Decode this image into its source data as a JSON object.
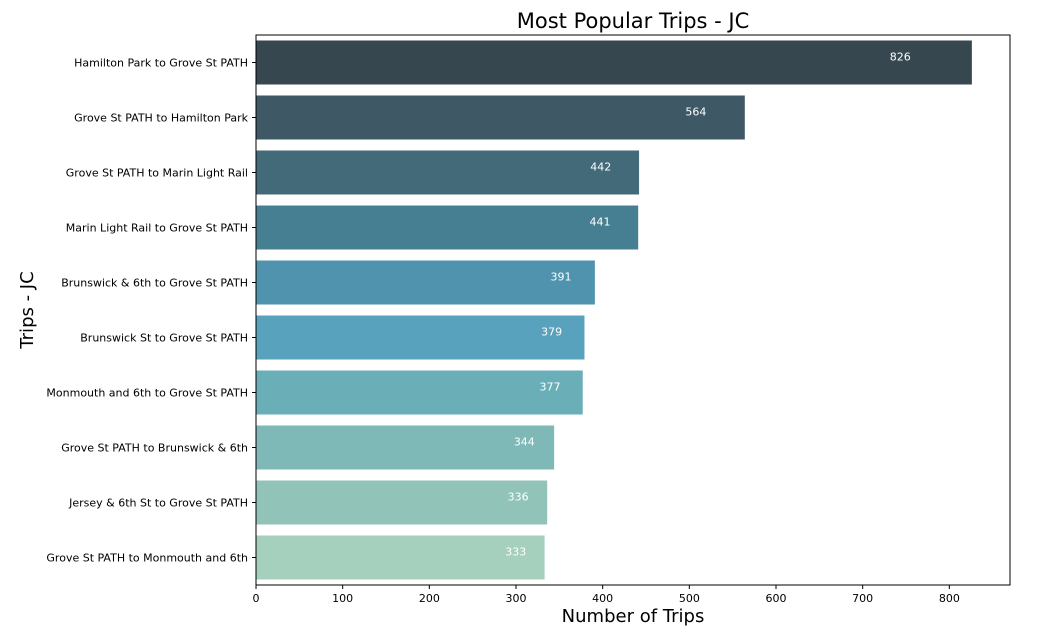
{
  "chart_data": {
    "type": "bar",
    "orientation": "horizontal",
    "title": "Most Popular Trips - JC",
    "xlabel": "Number of Trips",
    "ylabel": "Trips - JC",
    "xlim": [
      0,
      870
    ],
    "xticks": [
      0,
      100,
      200,
      300,
      400,
      500,
      600,
      700,
      800
    ],
    "grid": false,
    "categories": [
      "Hamilton Park to Grove St PATH",
      "Grove St PATH to Hamilton Park",
      "Grove St PATH to Marin Light Rail",
      "Marin Light Rail to Grove St PATH",
      "Brunswick & 6th to Grove St PATH",
      "Brunswick St to Grove St PATH",
      "Monmouth and 6th to Grove St PATH",
      "Grove St PATH to Brunswick & 6th",
      "Jersey & 6th St to Grove St PATH",
      "Grove St PATH to Monmouth and 6th"
    ],
    "values": [
      826,
      564,
      442,
      441,
      391,
      379,
      377,
      344,
      336,
      333
    ],
    "colors": [
      "#37474f",
      "#3e5866",
      "#426a79",
      "#477f92",
      "#4f93ae",
      "#59a2bd",
      "#6aaeb8",
      "#7fb9b7",
      "#92c3b9",
      "#a5d0bd"
    ]
  }
}
